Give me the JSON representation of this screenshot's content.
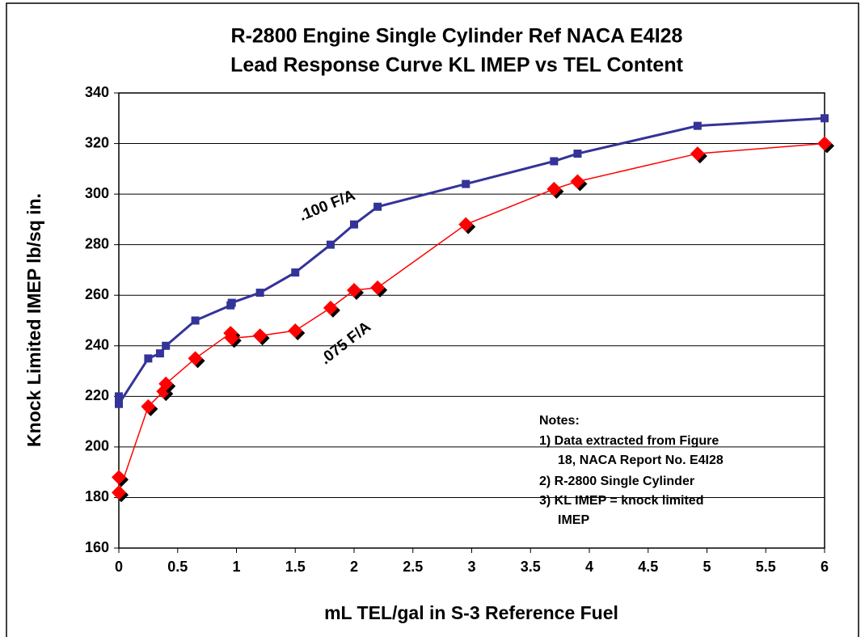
{
  "chart_data": {
    "type": "line",
    "title": [
      "R-2800 Engine Single Cylinder Ref NACA E4I28",
      "Lead Response Curve KL IMEP vs TEL Content"
    ],
    "x_label": "mL TEL/gal in S-3 Reference Fuel",
    "y_label": "Knock Limited IMEP lb/sq in.",
    "xlim": [
      0,
      6
    ],
    "xticks": [
      0,
      0.5,
      1,
      1.5,
      2,
      2.5,
      3,
      3.5,
      4,
      4.5,
      5,
      5.5,
      6
    ],
    "ylim": [
      160,
      340
    ],
    "yticks": [
      160,
      180,
      200,
      220,
      240,
      260,
      280,
      300,
      320,
      340
    ],
    "grid": true,
    "series": [
      {
        "name": ".100 F/A",
        "color": "#333399",
        "marker": "square",
        "x": [
          0,
          0,
          0.25,
          0.35,
          0.4,
          0.65,
          0.95,
          0.96,
          1.2,
          1.5,
          1.8,
          2,
          2.2,
          2.95,
          3.7,
          3.9,
          4.92,
          6
        ],
        "values": [
          220,
          217,
          235,
          237,
          240,
          250,
          256,
          257,
          261,
          269,
          280,
          288,
          295,
          304,
          313,
          316,
          327,
          330
        ]
      },
      {
        "name": ".075 F/A",
        "color": "#ff0000",
        "marker": "diamond",
        "x": [
          0,
          0,
          0.25,
          0.38,
          0.4,
          0.65,
          0.95,
          0.96,
          1.2,
          1.5,
          1.8,
          2,
          2.2,
          2.95,
          3.7,
          3.9,
          4.92,
          6
        ],
        "values": [
          188,
          182,
          216,
          222,
          225,
          235,
          245,
          243,
          244,
          246,
          255,
          262,
          263,
          288,
          302,
          305,
          316,
          320
        ]
      }
    ],
    "notes": [
      "Notes:",
      "1)  Data extracted from Figure",
      "18, NACA  Report No. E4I28",
      "2)  R-2800 Single Cylinder",
      "3)  KL IMEP = knock limited",
      "IMEP"
    ]
  }
}
